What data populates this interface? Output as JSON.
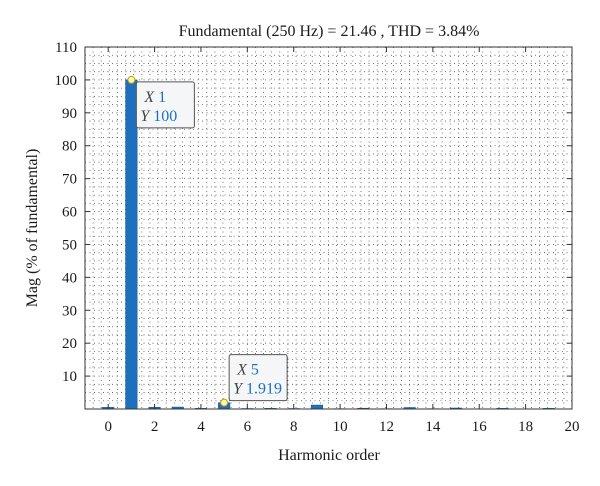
{
  "chart_data": {
    "type": "bar",
    "title": "Fundamental (250 Hz) = 21.46 , THD = 3.84%",
    "xlabel": "Harmonic order",
    "ylabel": "Mag (% of fundamental)",
    "xlim": [
      -1,
      20
    ],
    "ylim": [
      0,
      110
    ],
    "x_ticks": [
      0,
      2,
      4,
      6,
      8,
      10,
      12,
      14,
      16,
      18,
      20
    ],
    "y_ticks": [
      10,
      20,
      30,
      40,
      50,
      60,
      70,
      80,
      90,
      100,
      110
    ],
    "grid": true,
    "bar_color": "#1f6fbf",
    "categories": [
      0,
      1,
      2,
      3,
      4,
      5,
      6,
      7,
      8,
      9,
      10,
      11,
      12,
      13,
      14,
      15,
      16,
      17,
      18,
      19
    ],
    "values": [
      0.5,
      100,
      0.55,
      0.6,
      0.2,
      1.919,
      0.15,
      0.2,
      0.15,
      1.2,
      0.1,
      0.25,
      0.1,
      0.45,
      0.1,
      0.3,
      0.05,
      0.2,
      0.05,
      0.2
    ],
    "annotations": [
      {
        "x_label": "X",
        "x_value": "1",
        "y_label": "Y",
        "y_value": "100",
        "point": [
          1,
          100
        ]
      },
      {
        "x_label": "X",
        "x_value": "5",
        "y_label": "Y",
        "y_value": "1.919",
        "point": [
          5,
          1.919
        ]
      }
    ]
  }
}
